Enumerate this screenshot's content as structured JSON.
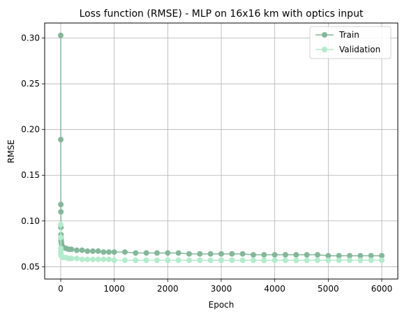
{
  "chart_data": {
    "type": "line",
    "title": "Loss function (RMSE) - MLP on 16x16 km with optics input",
    "xlabel": "Epoch",
    "ylabel": "RMSE",
    "xlim": [
      -300,
      6300
    ],
    "ylim": [
      0.0365,
      0.3165
    ],
    "xticks": [
      0,
      1000,
      2000,
      3000,
      4000,
      5000,
      6000
    ],
    "xtick_labels": [
      "0",
      "1000",
      "2000",
      "3000",
      "4000",
      "5000",
      "6000"
    ],
    "yticks": [
      0.05,
      0.1,
      0.15,
      0.2,
      0.25,
      0.3
    ],
    "ytick_labels": [
      "0.05",
      "0.10",
      "0.15",
      "0.20",
      "0.25",
      "0.30"
    ],
    "grid": true,
    "legend_position": "top-right",
    "series": [
      {
        "name": "Train",
        "color": "#84b79a",
        "marker": "circle",
        "x": [
          0,
          1,
          2,
          3,
          4,
          5,
          6,
          8,
          10,
          15,
          20,
          30,
          50,
          100,
          150,
          200,
          300,
          400,
          500,
          600,
          700,
          800,
          900,
          1000,
          1200,
          1400,
          1600,
          1800,
          2000,
          2200,
          2400,
          2600,
          2800,
          3000,
          3200,
          3400,
          3600,
          3800,
          4000,
          4200,
          4400,
          4600,
          4800,
          5000,
          5200,
          5400,
          5600,
          5800,
          6000
        ],
        "y": [
          0.303,
          0.189,
          0.118,
          0.11,
          0.093,
          0.085,
          0.082,
          0.079,
          0.077,
          0.075,
          0.073,
          0.072,
          0.071,
          0.07,
          0.069,
          0.069,
          0.068,
          0.068,
          0.067,
          0.067,
          0.067,
          0.066,
          0.066,
          0.066,
          0.066,
          0.065,
          0.065,
          0.065,
          0.065,
          0.065,
          0.064,
          0.064,
          0.064,
          0.064,
          0.064,
          0.064,
          0.063,
          0.063,
          0.063,
          0.063,
          0.063,
          0.063,
          0.063,
          0.062,
          0.062,
          0.062,
          0.062,
          0.062,
          0.062
        ]
      },
      {
        "name": "Validation",
        "color": "#b3ebcc",
        "marker": "circle",
        "x": [
          0,
          1,
          2,
          3,
          5,
          10,
          20,
          50,
          100,
          150,
          200,
          300,
          400,
          500,
          600,
          700,
          800,
          900,
          1000,
          1200,
          1400,
          1600,
          1800,
          2000,
          2200,
          2400,
          2600,
          2800,
          3000,
          3200,
          3400,
          3600,
          3800,
          4000,
          4200,
          4400,
          4600,
          4800,
          5000,
          5200,
          5400,
          5600,
          5800,
          6000
        ],
        "y": [
          0.096,
          0.082,
          0.07,
          0.066,
          0.063,
          0.062,
          0.061,
          0.06,
          0.06,
          0.059,
          0.059,
          0.059,
          0.058,
          0.058,
          0.058,
          0.058,
          0.058,
          0.058,
          0.057,
          0.057,
          0.057,
          0.057,
          0.057,
          0.057,
          0.057,
          0.057,
          0.057,
          0.057,
          0.057,
          0.057,
          0.057,
          0.057,
          0.057,
          0.057,
          0.057,
          0.057,
          0.057,
          0.057,
          0.057,
          0.057,
          0.057,
          0.057,
          0.057,
          0.057
        ]
      }
    ]
  }
}
